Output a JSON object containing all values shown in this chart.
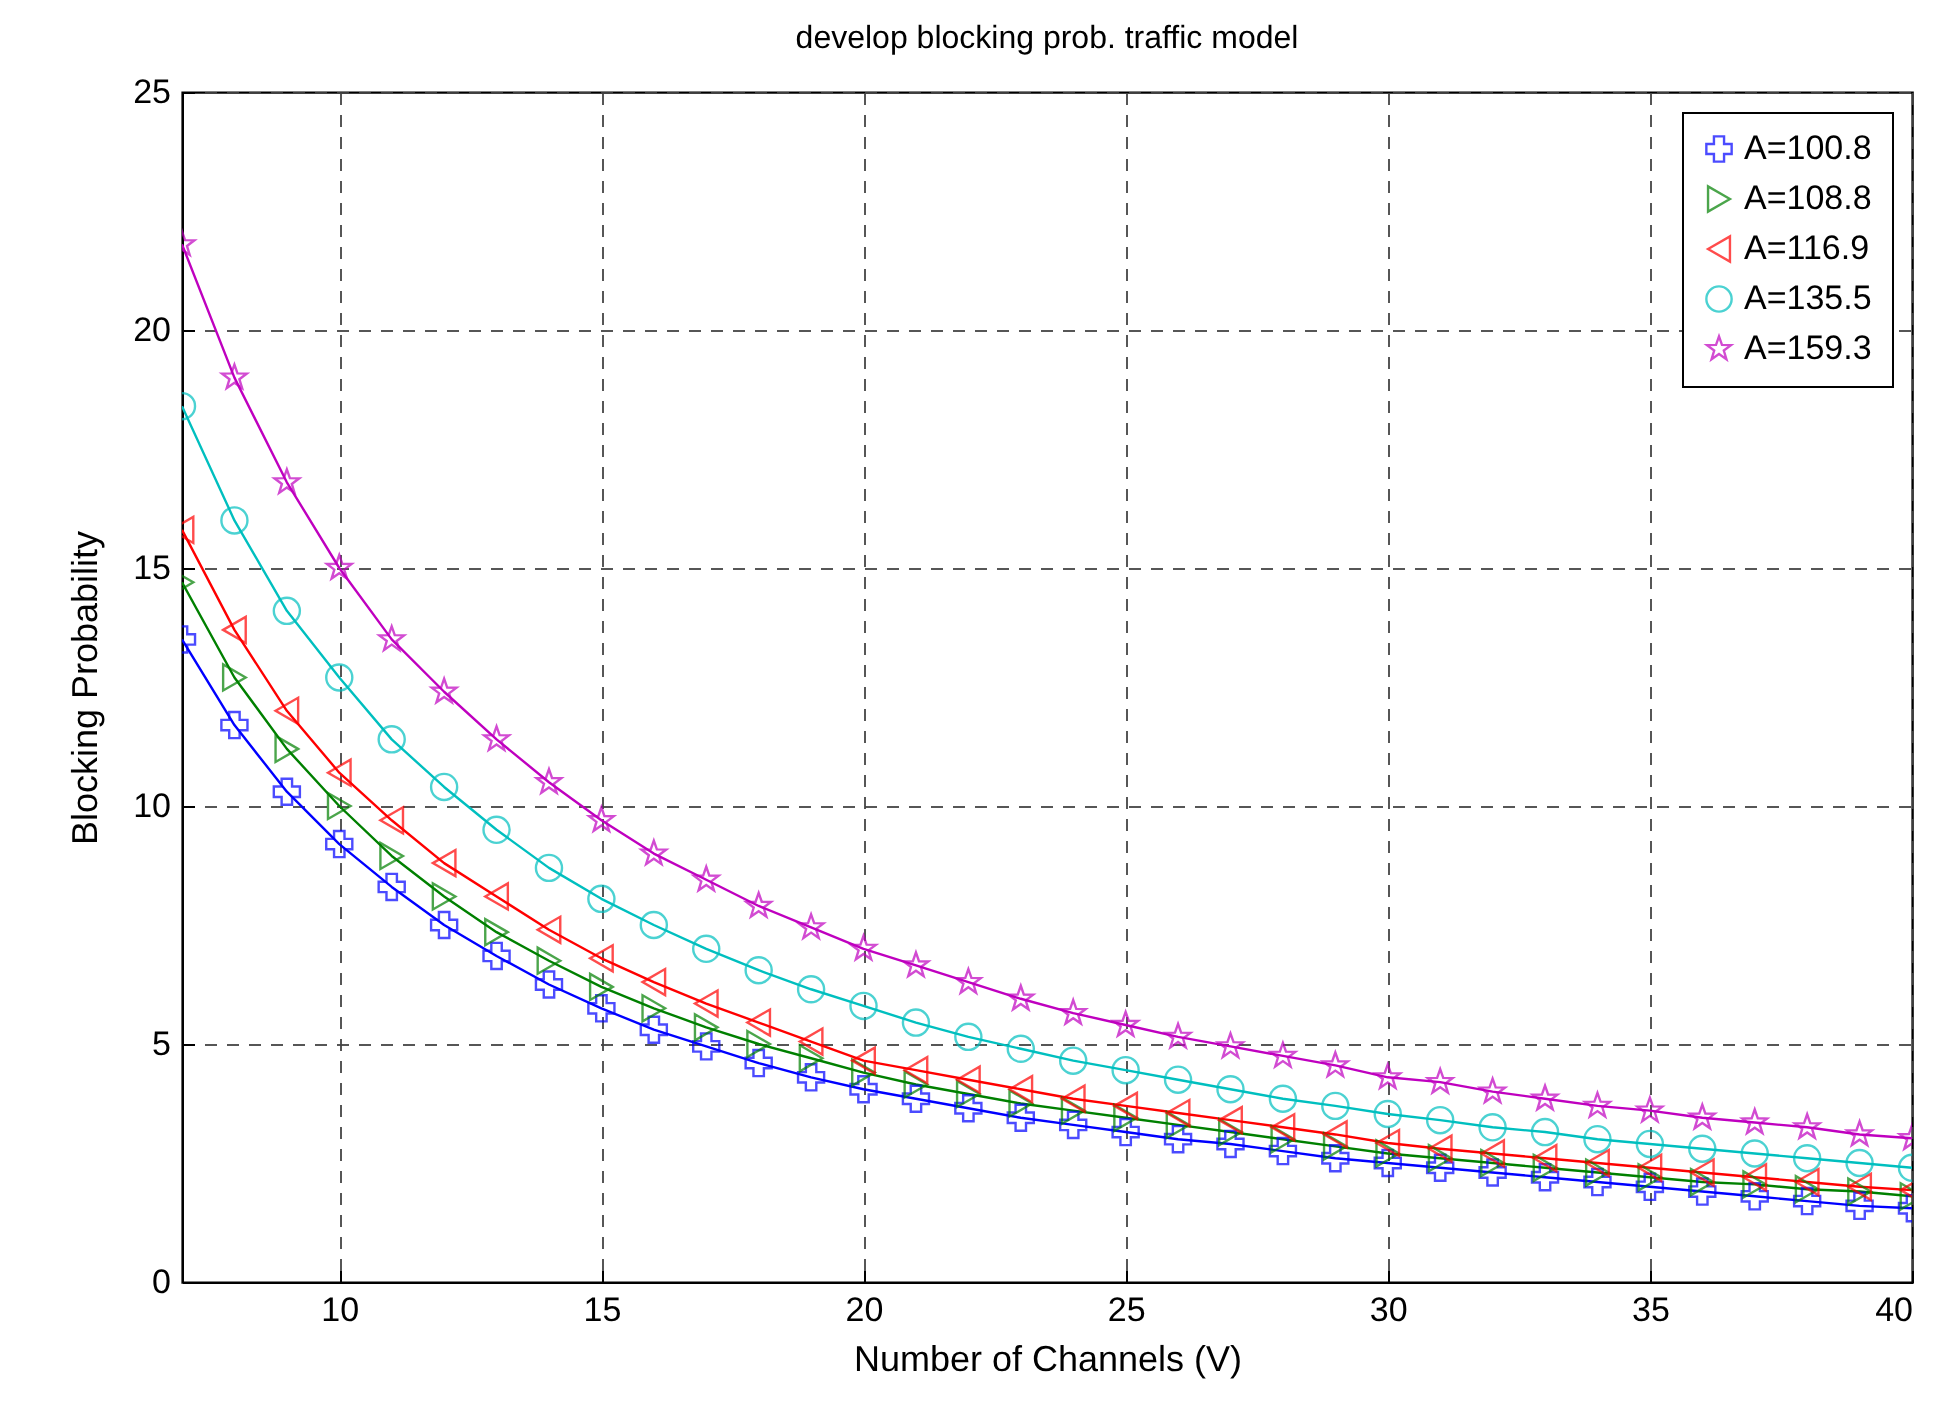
{
  "chart_data": {
    "type": "line",
    "title": "develop blocking prob. traffic model",
    "xlabel": "Number of Channels (V)",
    "ylabel": "Blocking Probability",
    "x": [
      7,
      8,
      9,
      10,
      11,
      12,
      13,
      14,
      15,
      16,
      17,
      18,
      19,
      20,
      21,
      22,
      23,
      24,
      25,
      26,
      27,
      28,
      29,
      30,
      31,
      32,
      33,
      34,
      35,
      36,
      37,
      38,
      39,
      40
    ],
    "xlim": [
      7,
      40
    ],
    "xticks": [
      10,
      15,
      20,
      25,
      30,
      35,
      40
    ],
    "ylim": [
      0,
      25
    ],
    "yticks": [
      0,
      5,
      10,
      15,
      20,
      25
    ],
    "grid": true,
    "legend": "top right",
    "line_style": "solid",
    "series": [
      {
        "name": "A=100.8",
        "color": "#0000ff",
        "marker": "cross",
        "values": [
          13.5,
          11.7,
          10.3,
          9.2,
          8.3,
          7.5,
          6.85,
          6.25,
          5.75,
          5.3,
          4.95,
          4.6,
          4.3,
          4.05,
          3.85,
          3.65,
          3.45,
          3.3,
          3.15,
          3.0,
          2.9,
          2.75,
          2.6,
          2.5,
          2.4,
          2.3,
          2.2,
          2.1,
          2.0,
          1.9,
          1.8,
          1.7,
          1.6,
          1.55
        ]
      },
      {
        "name": "A=108.8",
        "color": "#008000",
        "marker": "triangle-right",
        "values": [
          14.7,
          12.7,
          11.2,
          10.0,
          8.95,
          8.1,
          7.35,
          6.75,
          6.2,
          5.75,
          5.35,
          5.0,
          4.7,
          4.4,
          4.15,
          3.95,
          3.75,
          3.6,
          3.45,
          3.3,
          3.15,
          3.0,
          2.85,
          2.7,
          2.6,
          2.5,
          2.4,
          2.3,
          2.2,
          2.1,
          2.05,
          1.95,
          1.9,
          1.8
        ]
      },
      {
        "name": "A=116.9",
        "color": "#ff0000",
        "marker": "triangle-left",
        "values": [
          15.8,
          13.7,
          12.0,
          10.7,
          9.7,
          8.8,
          8.1,
          7.4,
          6.8,
          6.3,
          5.85,
          5.45,
          5.05,
          4.65,
          4.45,
          4.25,
          4.05,
          3.85,
          3.7,
          3.55,
          3.4,
          3.25,
          3.1,
          2.92,
          2.8,
          2.7,
          2.6,
          2.5,
          2.4,
          2.3,
          2.2,
          2.1,
          2.0,
          1.93
        ]
      },
      {
        "name": "A=135.5",
        "color": "#00bfbf",
        "marker": "circle",
        "values": [
          18.4,
          16.0,
          14.1,
          12.7,
          11.4,
          10.4,
          9.5,
          8.7,
          8.05,
          7.5,
          7.0,
          6.55,
          6.15,
          5.8,
          5.45,
          5.15,
          4.9,
          4.65,
          4.45,
          4.25,
          4.05,
          3.85,
          3.7,
          3.53,
          3.4,
          3.25,
          3.15,
          3.0,
          2.9,
          2.8,
          2.7,
          2.6,
          2.5,
          2.4
        ]
      },
      {
        "name": "A=159.3",
        "color": "#bf00bf",
        "marker": "star",
        "values": [
          21.8,
          19.0,
          16.8,
          15.0,
          13.5,
          12.4,
          11.4,
          10.5,
          9.7,
          9.0,
          8.45,
          7.9,
          7.45,
          7.0,
          6.65,
          6.3,
          5.95,
          5.65,
          5.4,
          5.15,
          4.95,
          4.75,
          4.55,
          4.3,
          4.2,
          4.0,
          3.85,
          3.7,
          3.6,
          3.45,
          3.35,
          3.25,
          3.1,
          3.02
        ]
      }
    ]
  }
}
